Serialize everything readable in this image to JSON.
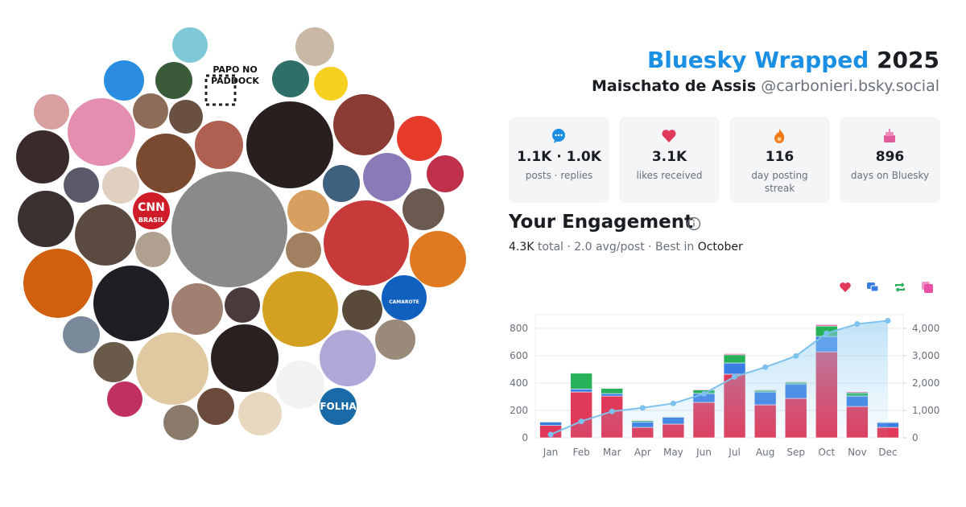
{
  "header": {
    "brand": "Bluesky Wrapped",
    "year": "2025",
    "name": "Maischato de Assis",
    "handle": "@carbonieri.bsky.social"
  },
  "avatar_texts": [
    "PAPO NO",
    "PADDOCK",
    "CNN",
    "BRASIL",
    "FOLHA",
    "CAMAROTE"
  ],
  "stats": [
    {
      "value": "1.1K · 1.0K",
      "label": "posts · replies"
    },
    {
      "value": "3.1K",
      "label": "likes received"
    },
    {
      "value": "116",
      "label": "day posting streak"
    },
    {
      "value": "896",
      "label": "days on Bluesky"
    }
  ],
  "engagement": {
    "title": "Your Engagement",
    "summary": [
      "4.3K",
      " total · 2.0 avg/post · Best in ",
      "October"
    ]
  },
  "chart_data": {
    "type": "bar",
    "stacked": true,
    "grid": true,
    "categories": [
      "Jan",
      "Feb",
      "Mar",
      "Apr",
      "May",
      "Jun",
      "Jul",
      "Aug",
      "Sep",
      "Oct",
      "Nov",
      "Dec"
    ],
    "series": [
      {
        "color": "#e0395a",
        "values": [
          90,
          335,
          305,
          76,
          100,
          259,
          465,
          241,
          288,
          629,
          229,
          76
        ]
      },
      {
        "color": "#3b7ee3",
        "values": [
          25,
          22,
          18,
          40,
          50,
          65,
          82,
          94,
          106,
          112,
          76,
          35
        ]
      },
      {
        "color": "#27b25a",
        "values": [
          5,
          115,
          38,
          10,
          6,
          25,
          60,
          12,
          12,
          76,
          24,
          5
        ]
      },
      {
        "color": "#e84fa5",
        "values": [
          2,
          4,
          4,
          4,
          3,
          5,
          8,
          5,
          5,
          10,
          8,
          2
        ]
      },
      {
        "type": "line",
        "axis": "y2",
        "color": "#7cc2ec",
        "values": [
          120,
          600,
          965,
          1095,
          1255,
          1610,
          2230,
          2580,
          2990,
          3820,
          4160,
          4280
        ]
      }
    ],
    "ylim": [
      0,
      900
    ],
    "yticks": [
      0,
      200,
      400,
      600,
      800
    ],
    "y2lim": [
      0,
      4500
    ],
    "y2ticks": [
      0,
      {
        "value": 1000,
        "label": "1,000"
      },
      {
        "value": 2000,
        "label": "2,000"
      },
      {
        "value": 3000,
        "label": "3,000"
      },
      {
        "value": 4000,
        "label": "4,000"
      }
    ]
  }
}
